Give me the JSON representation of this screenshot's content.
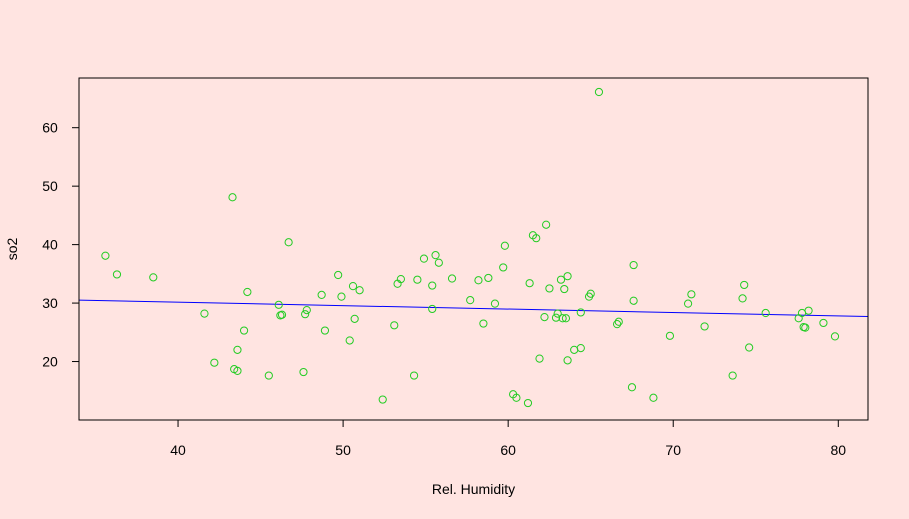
{
  "chart_data": {
    "type": "scatter",
    "title": "",
    "xlabel": "Rel. Humidity",
    "ylabel": "so2",
    "xlim": [
      34.0,
      81.8
    ],
    "ylim": [
      10.0,
      68.5
    ],
    "x_ticks": [
      40,
      50,
      60,
      70,
      80
    ],
    "y_ticks": [
      20,
      30,
      40,
      50,
      60
    ],
    "grid": false,
    "colors": {
      "background": "#ffe4e1",
      "points": "#22cc22",
      "fit_line": "#0000ff",
      "axis": "#000000"
    },
    "fit_line": {
      "x": [
        34.0,
        81.8
      ],
      "y": [
        30.5,
        27.7
      ]
    },
    "points": [
      {
        "x": 35.6,
        "y": 38.1
      },
      {
        "x": 36.3,
        "y": 34.9
      },
      {
        "x": 38.5,
        "y": 34.4
      },
      {
        "x": 41.6,
        "y": 28.2
      },
      {
        "x": 42.2,
        "y": 19.8
      },
      {
        "x": 43.3,
        "y": 48.1
      },
      {
        "x": 43.4,
        "y": 18.7
      },
      {
        "x": 43.6,
        "y": 18.4
      },
      {
        "x": 43.6,
        "y": 22.0
      },
      {
        "x": 44.0,
        "y": 25.3
      },
      {
        "x": 44.2,
        "y": 31.9
      },
      {
        "x": 45.5,
        "y": 17.6
      },
      {
        "x": 46.1,
        "y": 29.7
      },
      {
        "x": 46.2,
        "y": 27.9
      },
      {
        "x": 46.3,
        "y": 28.0
      },
      {
        "x": 46.7,
        "y": 40.4
      },
      {
        "x": 47.6,
        "y": 18.2
      },
      {
        "x": 47.7,
        "y": 28.1
      },
      {
        "x": 47.8,
        "y": 28.8
      },
      {
        "x": 48.7,
        "y": 31.4
      },
      {
        "x": 48.9,
        "y": 25.3
      },
      {
        "x": 49.7,
        "y": 34.8
      },
      {
        "x": 49.9,
        "y": 31.1
      },
      {
        "x": 50.4,
        "y": 23.6
      },
      {
        "x": 50.6,
        "y": 32.9
      },
      {
        "x": 50.7,
        "y": 27.3
      },
      {
        "x": 51.0,
        "y": 32.2
      },
      {
        "x": 52.4,
        "y": 13.5
      },
      {
        "x": 53.1,
        "y": 26.2
      },
      {
        "x": 53.3,
        "y": 33.3
      },
      {
        "x": 53.5,
        "y": 34.1
      },
      {
        "x": 54.3,
        "y": 17.6
      },
      {
        "x": 54.5,
        "y": 34.0
      },
      {
        "x": 54.9,
        "y": 37.6
      },
      {
        "x": 55.4,
        "y": 29.0
      },
      {
        "x": 55.4,
        "y": 33.0
      },
      {
        "x": 55.6,
        "y": 38.2
      },
      {
        "x": 55.8,
        "y": 36.9
      },
      {
        "x": 56.6,
        "y": 34.2
      },
      {
        "x": 57.7,
        "y": 30.5
      },
      {
        "x": 58.2,
        "y": 33.9
      },
      {
        "x": 58.5,
        "y": 26.5
      },
      {
        "x": 58.8,
        "y": 34.3
      },
      {
        "x": 59.2,
        "y": 29.9
      },
      {
        "x": 59.7,
        "y": 36.1
      },
      {
        "x": 59.8,
        "y": 39.8
      },
      {
        "x": 60.3,
        "y": 14.4
      },
      {
        "x": 60.5,
        "y": 13.8
      },
      {
        "x": 61.2,
        "y": 12.9
      },
      {
        "x": 61.3,
        "y": 33.4
      },
      {
        "x": 61.5,
        "y": 41.6
      },
      {
        "x": 61.7,
        "y": 41.1
      },
      {
        "x": 61.9,
        "y": 20.5
      },
      {
        "x": 62.2,
        "y": 27.6
      },
      {
        "x": 62.3,
        "y": 43.4
      },
      {
        "x": 62.5,
        "y": 32.5
      },
      {
        "x": 62.9,
        "y": 27.5
      },
      {
        "x": 63.0,
        "y": 28.2
      },
      {
        "x": 63.2,
        "y": 34.0
      },
      {
        "x": 63.3,
        "y": 27.4
      },
      {
        "x": 63.4,
        "y": 32.4
      },
      {
        "x": 63.5,
        "y": 27.4
      },
      {
        "x": 63.6,
        "y": 34.6
      },
      {
        "x": 63.6,
        "y": 20.2
      },
      {
        "x": 64.0,
        "y": 22.0
      },
      {
        "x": 64.4,
        "y": 22.3
      },
      {
        "x": 64.4,
        "y": 28.4
      },
      {
        "x": 64.9,
        "y": 31.1
      },
      {
        "x": 65.0,
        "y": 31.6
      },
      {
        "x": 65.5,
        "y": 66.1
      },
      {
        "x": 66.6,
        "y": 26.4
      },
      {
        "x": 66.7,
        "y": 26.8
      },
      {
        "x": 67.5,
        "y": 15.6
      },
      {
        "x": 67.6,
        "y": 30.4
      },
      {
        "x": 67.6,
        "y": 36.5
      },
      {
        "x": 68.8,
        "y": 13.8
      },
      {
        "x": 69.8,
        "y": 24.4
      },
      {
        "x": 70.9,
        "y": 29.9
      },
      {
        "x": 71.1,
        "y": 31.5
      },
      {
        "x": 71.9,
        "y": 26.0
      },
      {
        "x": 73.6,
        "y": 17.6
      },
      {
        "x": 74.2,
        "y": 30.8
      },
      {
        "x": 74.3,
        "y": 33.1
      },
      {
        "x": 74.6,
        "y": 22.4
      },
      {
        "x": 75.6,
        "y": 28.3
      },
      {
        "x": 77.6,
        "y": 27.4
      },
      {
        "x": 77.8,
        "y": 28.3
      },
      {
        "x": 77.9,
        "y": 25.9
      },
      {
        "x": 78.0,
        "y": 25.8
      },
      {
        "x": 78.2,
        "y": 28.7
      },
      {
        "x": 79.1,
        "y": 26.6
      },
      {
        "x": 79.8,
        "y": 24.3
      }
    ]
  }
}
